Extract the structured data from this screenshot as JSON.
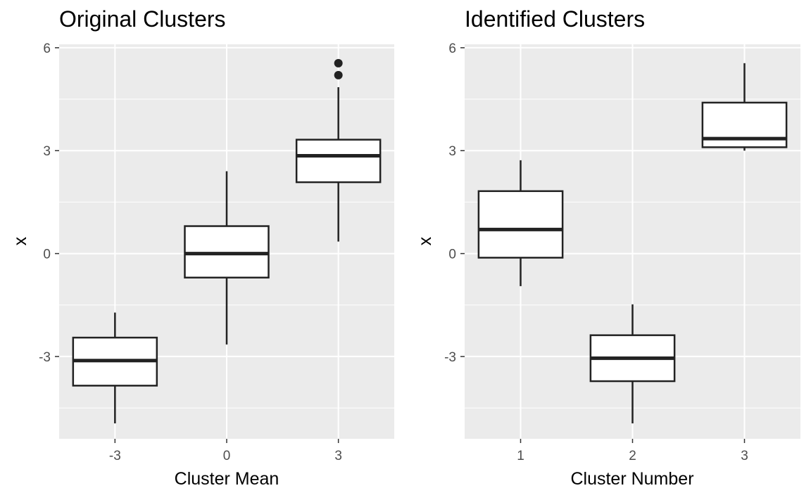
{
  "chart_data": [
    {
      "type": "boxplot",
      "title": "Original Clusters",
      "xlabel": "Cluster Mean",
      "ylabel": "x",
      "categories": [
        "-3",
        "0",
        "3"
      ],
      "yticks": [
        "6",
        "3",
        "0",
        "-3"
      ],
      "ylim": [
        -5.4,
        6.1
      ],
      "grid": true,
      "boxes": [
        {
          "category": "-3",
          "whisker_low": -4.95,
          "q1": -3.85,
          "median": -3.12,
          "q3": -2.45,
          "whisker_high": -1.72,
          "outliers": []
        },
        {
          "category": "0",
          "whisker_low": -2.65,
          "q1": -0.7,
          "median": 0.0,
          "q3": 0.8,
          "whisker_high": 2.4,
          "outliers": []
        },
        {
          "category": "3",
          "whisker_low": 0.35,
          "q1": 2.08,
          "median": 2.85,
          "q3": 3.32,
          "whisker_high": 4.85,
          "outliers": [
            5.2,
            5.55
          ]
        }
      ]
    },
    {
      "type": "boxplot",
      "title": "Identified Clusters",
      "xlabel": "Cluster Number",
      "ylabel": "x",
      "categories": [
        "1",
        "2",
        "3"
      ],
      "yticks": [
        "6",
        "3",
        "0",
        "-3"
      ],
      "ylim": [
        -5.4,
        6.1
      ],
      "grid": true,
      "boxes": [
        {
          "category": "1",
          "whisker_low": -0.95,
          "q1": -0.12,
          "median": 0.7,
          "q3": 1.82,
          "whisker_high": 2.72,
          "outliers": []
        },
        {
          "category": "2",
          "whisker_low": -4.95,
          "q1": -3.72,
          "median": -3.05,
          "q3": -2.38,
          "whisker_high": -1.48,
          "outliers": []
        },
        {
          "category": "3",
          "whisker_low": 3.0,
          "q1": 3.1,
          "median": 3.35,
          "q3": 4.4,
          "whisker_high": 5.55,
          "outliers": []
        }
      ]
    }
  ]
}
